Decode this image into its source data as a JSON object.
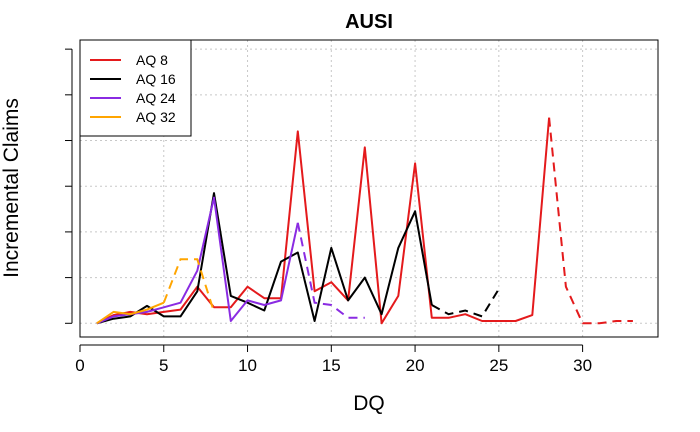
{
  "chart_data": {
    "type": "line",
    "title": "AUSI",
    "xlabel": "DQ",
    "ylabel": "Incremental Claims",
    "xlim": [
      0,
      34.5
    ],
    "ylim": [
      -0.3,
      6.2
    ],
    "xticks": [
      0,
      5,
      10,
      15,
      20,
      25,
      30
    ],
    "grid": true,
    "y_tick_labels_shown": false,
    "legend_position": "top-left",
    "series": [
      {
        "name": "AQ 8",
        "color": "#e41a1c",
        "x": [
          1,
          2,
          3,
          4,
          5,
          6,
          7,
          8,
          9,
          10,
          11,
          12,
          13,
          14,
          15,
          16,
          17,
          18,
          19,
          20,
          21,
          22,
          23,
          24,
          25,
          26,
          27,
          28
        ],
        "y": [
          0,
          0.18,
          0.25,
          0.2,
          0.25,
          0.3,
          0.8,
          0.35,
          0.35,
          0.8,
          0.55,
          0.55,
          4.2,
          0.7,
          0.9,
          0.5,
          3.85,
          0,
          0.6,
          3.5,
          0.12,
          0.12,
          0.2,
          0.05,
          0.05,
          0.05,
          0.18,
          4.5
        ],
        "projected_x": [
          28,
          29,
          30,
          31,
          32,
          33
        ],
        "projected_y": [
          4.5,
          0.8,
          0,
          0,
          0.05,
          0.05
        ]
      },
      {
        "name": "AQ 16",
        "color": "#000000",
        "x": [
          1,
          2,
          3,
          4,
          5,
          6,
          7,
          8,
          9,
          10,
          11,
          12,
          13,
          14,
          15,
          16,
          17,
          18,
          19,
          20,
          21
        ],
        "y": [
          0,
          0.1,
          0.15,
          0.38,
          0.15,
          0.15,
          0.7,
          2.85,
          0.6,
          0.45,
          0.28,
          1.35,
          1.55,
          0.05,
          1.65,
          0.5,
          1.0,
          0.2,
          1.65,
          2.45,
          0.4
        ],
        "projected_x": [
          21,
          22,
          23,
          24,
          25
        ],
        "projected_y": [
          0.4,
          0.2,
          0.28,
          0.15,
          0.75
        ]
      },
      {
        "name": "AQ 24",
        "color": "#8a2be2",
        "x": [
          1,
          2,
          3,
          4,
          5,
          6,
          7,
          8,
          9,
          10,
          11,
          12,
          13
        ],
        "y": [
          0,
          0.15,
          0.2,
          0.25,
          0.35,
          0.45,
          1.15,
          2.75,
          0.05,
          0.5,
          0.4,
          0.5,
          2.2
        ],
        "projected_x": [
          13,
          14,
          15,
          16,
          17
        ],
        "projected_y": [
          2.2,
          0.45,
          0.4,
          0.12,
          0.12
        ]
      },
      {
        "name": "AQ 32",
        "color": "#ffa500",
        "x": [
          1,
          2,
          3,
          4,
          5
        ],
        "y": [
          0,
          0.25,
          0.2,
          0.3,
          0.45
        ],
        "projected_x": [
          5,
          6,
          7,
          8
        ],
        "projected_y": [
          0.45,
          1.4,
          1.4,
          0.25
        ]
      }
    ]
  }
}
